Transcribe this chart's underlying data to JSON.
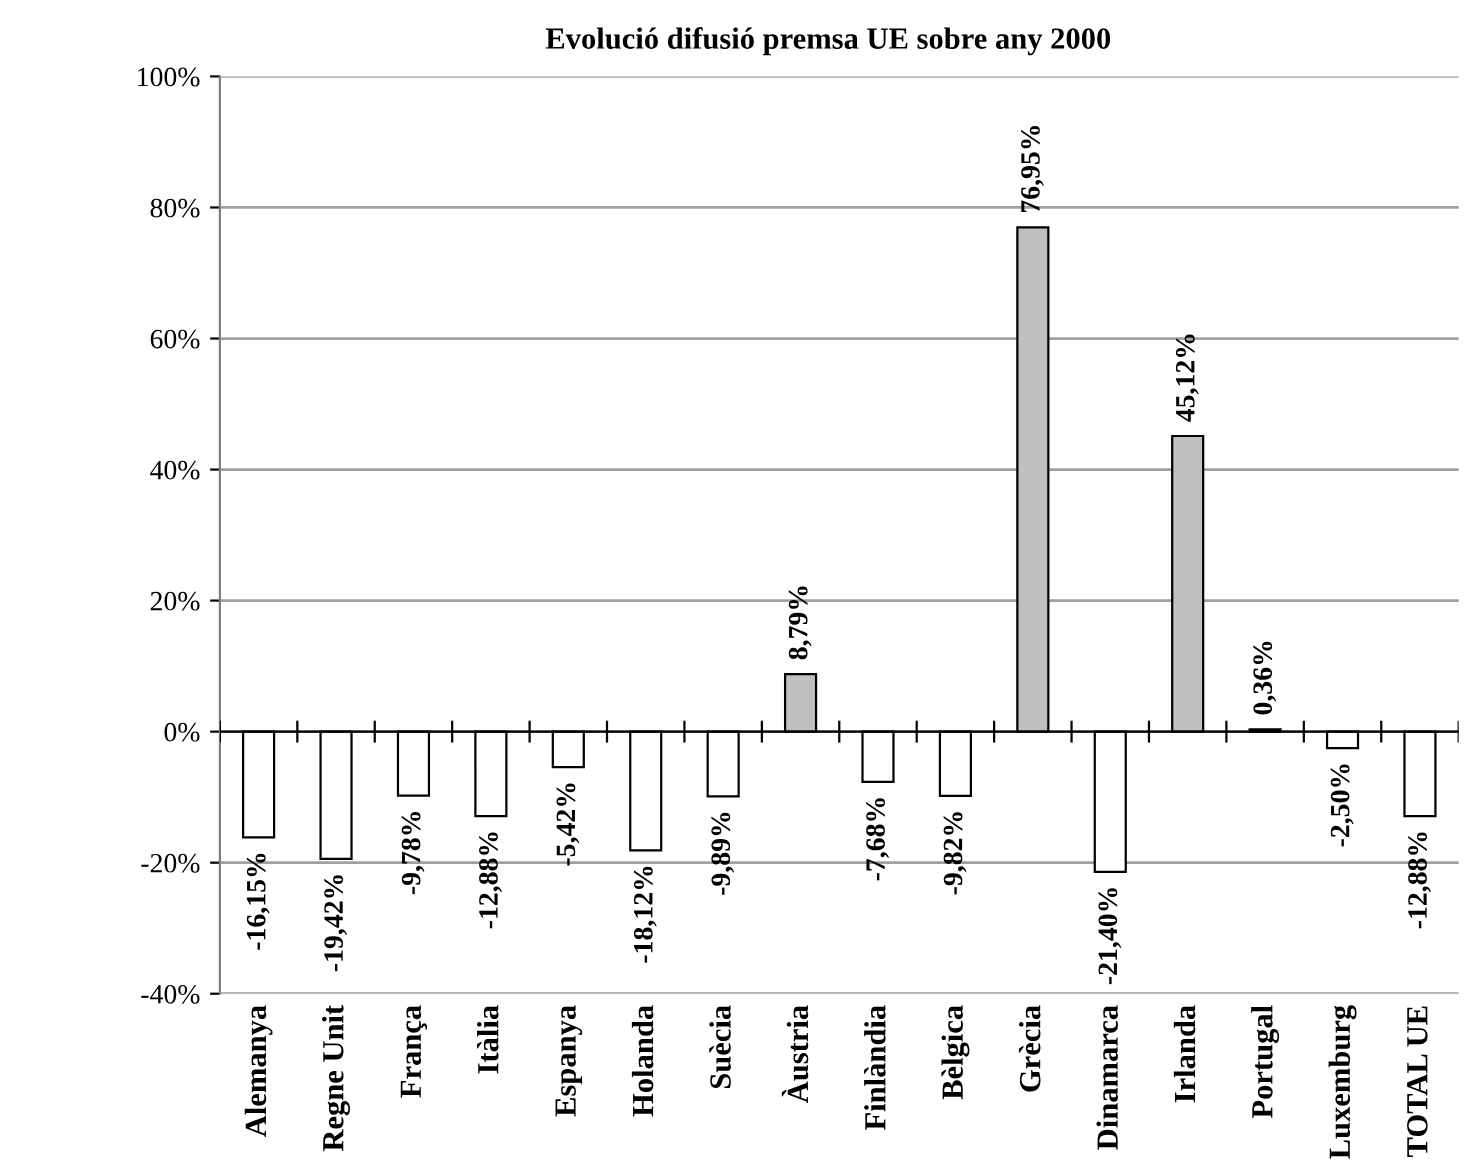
{
  "chart_data": {
    "type": "bar",
    "title": "Evolució difusió premsa UE sobre any 2000",
    "categories": [
      "Alemanya",
      "Regne Unit",
      "França",
      "Itàlia",
      "Espanya",
      "Holanda",
      "Suècia",
      "Àustria",
      "Finlàndia",
      "Bèlgica",
      "Grècia",
      "Dinamarca",
      "Irlanda",
      "Portugal",
      "Luxemburg",
      "TOTAL UE"
    ],
    "values": [
      -16.15,
      -19.42,
      -9.78,
      -12.88,
      -5.42,
      -18.12,
      -9.89,
      8.79,
      -7.68,
      -9.82,
      76.95,
      -21.4,
      45.12,
      0.36,
      -2.5,
      -12.88
    ],
    "value_labels": [
      "-16,15%",
      "-19,42%",
      "-9,78%",
      "-12,88%",
      "-5,42%",
      "-18,12%",
      "-9,89%",
      "8,79%",
      "-7,68%",
      "-9,82%",
      "76,95%",
      "-21,40%",
      "45,12%",
      "0,36%",
      "-2,50%",
      "-12,88%"
    ],
    "colors": [
      "#ffffff",
      "#ffffff",
      "#ffffff",
      "#ffffff",
      "#ffffff",
      "#ffffff",
      "#ffffff",
      "#c0c0c0",
      "#ffffff",
      "#ffffff",
      "#c0c0c0",
      "#ffffff",
      "#c0c0c0",
      "#c0c0c0",
      "#ffffff",
      "#ffffff"
    ],
    "ylim": [
      -40,
      100
    ],
    "yticks": [
      {
        "value": -40,
        "label": "-40%"
      },
      {
        "value": -20,
        "label": "-20%"
      },
      {
        "value": 0,
        "label": "0%"
      },
      {
        "value": 20,
        "label": "20%"
      },
      {
        "value": 40,
        "label": "40%"
      },
      {
        "value": 60,
        "label": "60%"
      },
      {
        "value": 80,
        "label": "80%"
      },
      {
        "value": 100,
        "label": "100%"
      }
    ],
    "grid": "y"
  }
}
